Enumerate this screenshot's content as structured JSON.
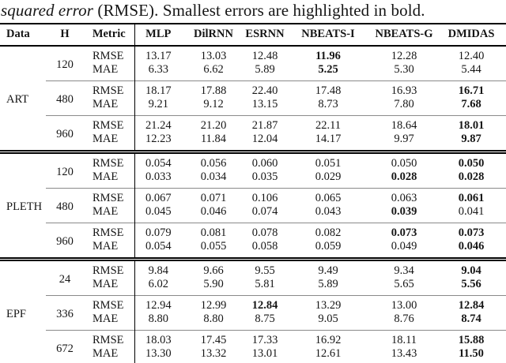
{
  "caption": {
    "italic": "squared error",
    "regular": " (RMSE). Smallest errors are highlighted in bold."
  },
  "table": {
    "columns": [
      "Data",
      "H",
      "Metric",
      "MLP",
      "DilRNN",
      "ESRNN",
      "NBEATS-I",
      "NBEATS-G",
      "DMIDAS"
    ],
    "sections": [
      {
        "dataset": "ART",
        "groups": [
          {
            "h": "120",
            "rows": [
              {
                "metric": "RMSE",
                "values": [
                  "13.17",
                  "13.03",
                  "12.48",
                  "11.96",
                  "12.28",
                  "12.40"
                ],
                "bold": [
                  3
                ]
              },
              {
                "metric": "MAE",
                "values": [
                  "6.33",
                  "6.62",
                  "5.89",
                  "5.25",
                  "5.30",
                  "5.44"
                ],
                "bold": [
                  3
                ]
              }
            ]
          },
          {
            "h": "480",
            "rows": [
              {
                "metric": "RMSE",
                "values": [
                  "18.17",
                  "17.88",
                  "22.40",
                  "17.48",
                  "16.93",
                  "16.71"
                ],
                "bold": [
                  5
                ]
              },
              {
                "metric": "MAE",
                "values": [
                  "9.21",
                  "9.12",
                  "13.15",
                  "8.73",
                  "7.80",
                  "7.68"
                ],
                "bold": [
                  5
                ]
              }
            ]
          },
          {
            "h": "960",
            "rows": [
              {
                "metric": "RMSE",
                "values": [
                  "21.24",
                  "21.20",
                  "21.87",
                  "22.11",
                  "18.64",
                  "18.01"
                ],
                "bold": [
                  5
                ]
              },
              {
                "metric": "MAE",
                "values": [
                  "12.23",
                  "11.84",
                  "12.04",
                  "14.17",
                  "9.97",
                  "9.87"
                ],
                "bold": [
                  5
                ]
              }
            ]
          }
        ]
      },
      {
        "dataset": "PLETH",
        "groups": [
          {
            "h": "120",
            "rows": [
              {
                "metric": "RMSE",
                "values": [
                  "0.054",
                  "0.056",
                  "0.060",
                  "0.051",
                  "0.050",
                  "0.050"
                ],
                "bold": [
                  5
                ]
              },
              {
                "metric": "MAE",
                "values": [
                  "0.033",
                  "0.034",
                  "0.035",
                  "0.029",
                  "0.028",
                  "0.028"
                ],
                "bold": [
                  4,
                  5
                ]
              }
            ]
          },
          {
            "h": "480",
            "rows": [
              {
                "metric": "RMSE",
                "values": [
                  "0.067",
                  "0.071",
                  "0.106",
                  "0.065",
                  "0.063",
                  "0.061"
                ],
                "bold": [
                  5
                ]
              },
              {
                "metric": "MAE",
                "values": [
                  "0.045",
                  "0.046",
                  "0.074",
                  "0.043",
                  "0.039",
                  "0.041"
                ],
                "bold": [
                  4
                ]
              }
            ]
          },
          {
            "h": "960",
            "rows": [
              {
                "metric": "RMSE",
                "values": [
                  "0.079",
                  "0.081",
                  "0.078",
                  "0.082",
                  "0.073",
                  "0.073"
                ],
                "bold": [
                  4,
                  5
                ]
              },
              {
                "metric": "MAE",
                "values": [
                  "0.054",
                  "0.055",
                  "0.058",
                  "0.059",
                  "0.049",
                  "0.046"
                ],
                "bold": [
                  5
                ]
              }
            ]
          }
        ]
      },
      {
        "dataset": "EPF",
        "groups": [
          {
            "h": "24",
            "rows": [
              {
                "metric": "RMSE",
                "values": [
                  "9.84",
                  "9.66",
                  "9.55",
                  "9.49",
                  "9.34",
                  "9.04"
                ],
                "bold": [
                  5
                ]
              },
              {
                "metric": "MAE",
                "values": [
                  "6.02",
                  "5.90",
                  "5.81",
                  "5.89",
                  "5.65",
                  "5.56"
                ],
                "bold": [
                  5
                ]
              }
            ]
          },
          {
            "h": "336",
            "rows": [
              {
                "metric": "RMSE",
                "values": [
                  "12.94",
                  "12.99",
                  "12.84",
                  "13.29",
                  "13.00",
                  "12.84"
                ],
                "bold": [
                  2,
                  5
                ]
              },
              {
                "metric": "MAE",
                "values": [
                  "8.80",
                  "8.80",
                  "8.75",
                  "9.05",
                  "8.76",
                  "8.74"
                ],
                "bold": [
                  5
                ]
              }
            ]
          },
          {
            "h": "672",
            "rows": [
              {
                "metric": "RMSE",
                "values": [
                  "18.03",
                  "17.45",
                  "17.33",
                  "16.92",
                  "18.11",
                  "15.88"
                ],
                "bold": [
                  5
                ]
              },
              {
                "metric": "MAE",
                "values": [
                  "13.30",
                  "13.32",
                  "13.01",
                  "12.61",
                  "13.43",
                  "11.50"
                ],
                "bold": [
                  5
                ]
              }
            ]
          }
        ]
      }
    ]
  }
}
